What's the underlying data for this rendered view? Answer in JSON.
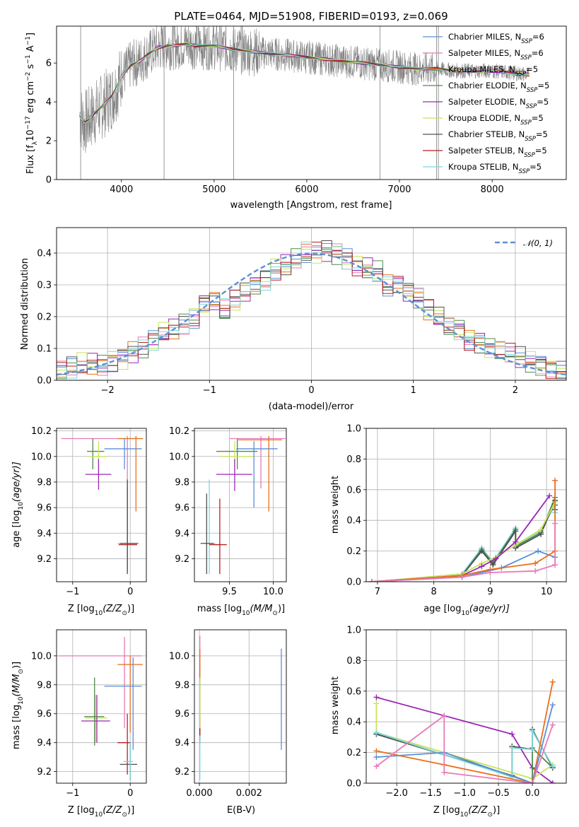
{
  "colors": {
    "chabrier_miles": "#5b8fd8",
    "salpeter_miles": "#e879b7",
    "kroupa_miles": "#ea6f1c",
    "chabrier_elodie": "#4f8a4c",
    "salpeter_elodie": "#9b27b5",
    "kroupa_elodie": "#c8e35a",
    "chabrier_stelib": "#505050",
    "salpeter_stelib": "#b52020",
    "kroupa_stelib": "#7dd8dc",
    "data": "#808080",
    "gauss": "#5b8fd8",
    "grid": "#b0b0b0"
  },
  "chart_data": [
    {
      "id": "spectrum",
      "type": "line",
      "title": "PLATE=0464, MJD=51908, FIBERID=0193, z=0.069",
      "xlabel": "wavelength [Angstrom, rest frame]",
      "ylabel_main": "Flux [f",
      "ylabel_lambda": "λ",
      "ylabel_mid": "10",
      "ylabel_exp1": "−17",
      "ylabel_mid2": " erg cm",
      "ylabel_exp2": "−2",
      "ylabel_mid3": " s",
      "ylabel_exp3": "−1",
      "ylabel_mid4": " A",
      "ylabel_exp4": "−1",
      "ylabel_end": "]",
      "xlim": [
        3300,
        8800
      ],
      "ylim": [
        0,
        7.9
      ],
      "xticks": [
        4000,
        5000,
        6000,
        7000,
        8000
      ],
      "yticks": [
        0,
        2,
        4,
        6
      ],
      "grid": false,
      "legend": "top-right",
      "series": [
        {
          "name": "Chabrier MILES, N",
          "sub": "SSP",
          "tail": "=6",
          "color": "#5b8fd8"
        },
        {
          "name": "Salpeter MILES, N",
          "sub": "SSP",
          "tail": "=6",
          "color": "#e879b7"
        },
        {
          "name": "Kroupa MILES, N",
          "sub": "SSP",
          "tail": "=5",
          "color": "#ea6f1c"
        },
        {
          "name": "Chabrier ELODIE, N",
          "sub": "SSP",
          "tail": "=5",
          "color": "#4f8a4c"
        },
        {
          "name": "Salpeter ELODIE, N",
          "sub": "SSP",
          "tail": "=5",
          "color": "#9b27b5"
        },
        {
          "name": "Kroupa ELODIE, N",
          "sub": "SSP",
          "tail": "=5",
          "color": "#c8e35a"
        },
        {
          "name": "Chabrier STELIB, N",
          "sub": "SSP",
          "tail": "=5",
          "color": "#505050"
        },
        {
          "name": "Salpeter STELIB, N",
          "sub": "SSP",
          "tail": "=5",
          "color": "#b52020"
        },
        {
          "name": "Kroupa STELIB, N",
          "sub": "SSP",
          "tail": "=5",
          "color": "#7dd8dc"
        }
      ],
      "model_x": [
        3550,
        3600,
        3650,
        3700,
        3800,
        3900,
        4000,
        4100,
        4200,
        4300,
        4400,
        4500,
        4600,
        4700,
        4800,
        5000,
        5200,
        5400,
        5600,
        5800,
        6000,
        6200,
        6400,
        6600,
        6800,
        7000,
        7200,
        7400,
        7600,
        7800,
        8000,
        8200,
        8400
      ],
      "model_y": [
        3.3,
        2.9,
        3.1,
        3.4,
        3.8,
        4.3,
        5.3,
        5.9,
        6.1,
        6.5,
        6.8,
        6.9,
        6.9,
        7.0,
        6.9,
        6.9,
        6.7,
        6.6,
        6.5,
        6.4,
        6.3,
        6.2,
        6.1,
        6.0,
        5.9,
        5.8,
        5.7,
        5.7,
        5.6,
        5.6,
        5.6,
        5.5,
        5.4
      ]
    },
    {
      "id": "residuals",
      "type": "histogram",
      "xlabel": "(data-model)/error",
      "ylabel": "Normed distribution",
      "xlim": [
        -2.5,
        2.5
      ],
      "ylim": [
        0,
        0.48
      ],
      "xticks": [
        -2,
        -1,
        0,
        1,
        2
      ],
      "yticks": [
        0.0,
        0.1,
        0.2,
        0.3,
        0.4
      ],
      "grid": true,
      "legend": "top-right",
      "gauss_label": "𝒩(0, 1)",
      "bin_edges": [
        -2.5,
        -2.4,
        -2.3,
        -2.2,
        -2.1,
        -2.0,
        -1.9,
        -1.8,
        -1.7,
        -1.6,
        -1.5,
        -1.4,
        -1.3,
        -1.2,
        -1.1,
        -1.0,
        -0.9,
        -0.8,
        -0.7,
        -0.6,
        -0.5,
        -0.4,
        -0.3,
        -0.2,
        -0.1,
        0.0,
        0.1,
        0.2,
        0.3,
        0.4,
        0.5,
        0.6,
        0.7,
        0.8,
        0.9,
        1.0,
        1.1,
        1.2,
        1.3,
        1.4,
        1.5,
        1.6,
        1.7,
        1.8,
        1.9,
        2.0,
        2.1,
        2.2,
        2.3,
        2.4,
        2.5
      ],
      "hist_base": [
        0.03,
        0.04,
        0.05,
        0.05,
        0.05,
        0.06,
        0.07,
        0.09,
        0.1,
        0.12,
        0.15,
        0.16,
        0.18,
        0.2,
        0.24,
        0.25,
        0.22,
        0.25,
        0.28,
        0.3,
        0.32,
        0.35,
        0.36,
        0.38,
        0.4,
        0.4,
        0.41,
        0.4,
        0.38,
        0.36,
        0.35,
        0.34,
        0.3,
        0.3,
        0.28,
        0.26,
        0.22,
        0.2,
        0.17,
        0.16,
        0.13,
        0.12,
        0.1,
        0.09,
        0.08,
        0.07,
        0.06,
        0.05,
        0.04,
        0.03
      ]
    },
    {
      "id": "z_vs_age",
      "type": "errorbar",
      "xlabel": "Z [log",
      "xlabel_sub": "10",
      "xlabel_end": "(Z/Z",
      "xlabel_sun": "⊙",
      "xlabel_close": ")]",
      "ylabel": "age  [log",
      "ylabel_sub": "10",
      "ylabel_end": "(age/yr)]",
      "xlim": [
        -1.28,
        0.28
      ],
      "ylim": [
        9.02,
        10.22
      ],
      "xticks": [
        -1,
        0
      ],
      "yticks": [
        9.2,
        9.4,
        9.6,
        9.8,
        10.0,
        10.2
      ],
      "grid": true,
      "points": [
        {
          "x": -0.05,
          "y": 10.14,
          "xlo": -1.2,
          "xhi": 0.22,
          "ylo": 9.63,
          "yhi": 10.16,
          "c": "#e879b7"
        },
        {
          "x": 0.1,
          "y": 10.14,
          "xlo": -0.22,
          "xhi": 0.22,
          "ylo": 9.57,
          "yhi": 10.16,
          "c": "#ea6f1c"
        },
        {
          "x": -0.1,
          "y": 10.06,
          "xlo": -0.45,
          "xhi": 0.2,
          "ylo": 9.9,
          "yhi": 10.14,
          "c": "#5b8fd8"
        },
        {
          "x": -0.65,
          "y": 10.04,
          "xlo": -0.75,
          "xhi": -0.45,
          "ylo": 9.9,
          "yhi": 10.14,
          "c": "#4f8a4c"
        },
        {
          "x": -0.55,
          "y": 10.0,
          "xlo": -0.72,
          "xhi": -0.4,
          "ylo": 9.87,
          "yhi": 10.12,
          "c": "#c8e35a"
        },
        {
          "x": -0.55,
          "y": 9.86,
          "xlo": -0.78,
          "xhi": -0.33,
          "ylo": 9.74,
          "yhi": 9.98,
          "c": "#9b27b5"
        },
        {
          "x": -0.05,
          "y": 9.32,
          "xlo": -0.22,
          "xhi": 0.12,
          "ylo": 9.1,
          "yhi": 9.8,
          "c": "#7dd8dc"
        },
        {
          "x": -0.05,
          "y": 9.31,
          "xlo": -0.2,
          "xhi": 0.12,
          "ylo": 9.08,
          "yhi": 9.76,
          "c": "#b52020"
        },
        {
          "x": -0.05,
          "y": 9.32,
          "xlo": -0.18,
          "xhi": 0.14,
          "ylo": 9.1,
          "yhi": 9.82,
          "c": "#505050"
        }
      ]
    },
    {
      "id": "mass_vs_age",
      "type": "errorbar",
      "xlabel": "mass [log",
      "xlabel_sub": "10",
      "xlabel_end": "(M/M",
      "xlabel_sun": "⊙",
      "xlabel_close": ")]",
      "xlim": [
        9.1,
        10.15
      ],
      "ylim": [
        9.02,
        10.22
      ],
      "xticks": [
        9.5,
        10.0
      ],
      "yticks": [
        9.2,
        9.4,
        9.6,
        9.8,
        10.0,
        10.2
      ],
      "grid": true,
      "points": [
        {
          "x": 9.86,
          "y": 10.14,
          "xlo": 9.5,
          "xhi": 10.14,
          "ylo": 9.75,
          "yhi": 10.16,
          "c": "#e879b7"
        },
        {
          "x": 9.95,
          "y": 10.13,
          "xlo": 9.6,
          "xhi": 10.1,
          "ylo": 9.57,
          "yhi": 10.16,
          "c": "#ea6f1c"
        },
        {
          "x": 9.78,
          "y": 10.06,
          "xlo": 9.58,
          "xhi": 10.05,
          "ylo": 9.6,
          "yhi": 10.12,
          "c": "#5b8fd8"
        },
        {
          "x": 9.59,
          "y": 10.04,
          "xlo": 9.35,
          "xhi": 9.82,
          "ylo": 9.9,
          "yhi": 10.14,
          "c": "#4f8a4c"
        },
        {
          "x": 9.56,
          "y": 10.0,
          "xlo": 9.38,
          "xhi": 9.77,
          "ylo": 9.88,
          "yhi": 10.12,
          "c": "#c8e35a"
        },
        {
          "x": 9.56,
          "y": 9.86,
          "xlo": 9.35,
          "xhi": 9.76,
          "ylo": 9.73,
          "yhi": 9.98,
          "c": "#9b27b5"
        },
        {
          "x": 9.27,
          "y": 9.32,
          "xlo": 9.2,
          "xhi": 9.34,
          "ylo": 9.08,
          "yhi": 9.82,
          "c": "#7dd8dc"
        },
        {
          "x": 9.39,
          "y": 9.31,
          "xlo": 9.27,
          "xhi": 9.47,
          "ylo": 9.08,
          "yhi": 9.67,
          "c": "#b52020"
        },
        {
          "x": 9.24,
          "y": 9.32,
          "xlo": 9.17,
          "xhi": 9.32,
          "ylo": 9.08,
          "yhi": 9.71,
          "c": "#505050"
        }
      ]
    },
    {
      "id": "age_weight",
      "type": "line",
      "xlabel": "age  [log",
      "xlabel_sub": "10",
      "xlabel_end": "(age/yr)]",
      "ylabel": "mass weight",
      "xlim": [
        6.8,
        10.35
      ],
      "ylim": [
        0,
        1.0
      ],
      "xticks": [
        7,
        8,
        9,
        10
      ],
      "yticks": [
        0.0,
        0.2,
        0.4,
        0.6,
        0.8,
        1.0
      ],
      "grid": true,
      "series": [
        {
          "c": "#7dd8dc",
          "x": [
            6.9,
            8.5,
            8.85,
            9.05,
            9.45,
            9.45,
            9.9,
            10.15,
            10.15
          ],
          "y": [
            0.0,
            0.05,
            0.22,
            0.13,
            0.35,
            0.24,
            0.33,
            0.5,
            0.45
          ]
        },
        {
          "c": "#4f8a4c",
          "x": [
            6.9,
            8.5,
            8.85,
            9.05,
            9.45,
            9.45,
            9.9,
            10.15,
            10.15
          ],
          "y": [
            0.0,
            0.04,
            0.21,
            0.12,
            0.34,
            0.23,
            0.32,
            0.55,
            0.5
          ]
        },
        {
          "c": "#505050",
          "x": [
            6.9,
            8.5,
            8.85,
            9.05,
            9.45,
            9.45,
            9.9,
            10.15,
            10.15
          ],
          "y": [
            0.0,
            0.04,
            0.2,
            0.11,
            0.33,
            0.22,
            0.31,
            0.53,
            0.47
          ]
        },
        {
          "c": "#c8e35a",
          "x": [
            6.9,
            8.5,
            8.85,
            9.1,
            9.45,
            9.9,
            10.15
          ],
          "y": [
            0.0,
            0.05,
            0.12,
            0.16,
            0.24,
            0.34,
            0.52
          ]
        },
        {
          "c": "#9b27b5",
          "x": [
            6.9,
            8.5,
            8.85,
            9.1,
            9.45,
            10.05
          ],
          "y": [
            0.0,
            0.04,
            0.1,
            0.15,
            0.26,
            0.56
          ]
        },
        {
          "c": "#5b8fd8",
          "x": [
            6.9,
            8.5,
            9.2,
            9.85,
            10.15
          ],
          "y": [
            0.0,
            0.03,
            0.09,
            0.2,
            0.16
          ]
        },
        {
          "c": "#ea6f1c",
          "x": [
            6.9,
            8.5,
            9.0,
            9.8,
            10.15,
            10.15
          ],
          "y": [
            0.0,
            0.04,
            0.08,
            0.12,
            0.2,
            0.66
          ]
        },
        {
          "c": "#e879b7",
          "x": [
            6.9,
            8.5,
            9.0,
            9.8,
            10.15,
            10.15
          ],
          "y": [
            0.0,
            0.03,
            0.06,
            0.07,
            0.11,
            0.38
          ]
        }
      ]
    },
    {
      "id": "z_vs_mass",
      "type": "errorbar",
      "xlabel": "Z [log",
      "xlabel_sub": "10",
      "xlabel_end": "(Z/Z",
      "xlabel_sun": "⊙",
      "xlabel_close": ")]",
      "ylabel": "mass [log",
      "ylabel_sub": "10",
      "ylabel_end": "(M/M",
      "ylabel_sun": "⊙",
      "ylabel_close": ")]",
      "xlim": [
        -1.28,
        0.28
      ],
      "ylim": [
        9.12,
        10.18
      ],
      "xticks": [
        -1,
        0
      ],
      "yticks": [
        9.2,
        9.4,
        9.6,
        9.8,
        10.0
      ],
      "grid": true,
      "points": [
        {
          "x": -0.1,
          "y": 10.0,
          "xlo": -1.25,
          "xhi": 0.2,
          "ylo": 9.5,
          "yhi": 10.13,
          "c": "#e879b7"
        },
        {
          "x": 0.0,
          "y": 9.94,
          "xlo": -0.22,
          "xhi": 0.22,
          "ylo": 9.47,
          "yhi": 10.0,
          "c": "#ea6f1c"
        },
        {
          "x": 0.05,
          "y": 9.79,
          "xlo": -0.45,
          "xhi": 0.2,
          "ylo": 9.35,
          "yhi": 9.99,
          "c": "#5b8fd8"
        },
        {
          "x": -0.6,
          "y": 9.57,
          "xlo": -0.78,
          "xhi": -0.4,
          "ylo": 9.4,
          "yhi": 9.73,
          "c": "#c8e35a"
        },
        {
          "x": -0.58,
          "y": 9.55,
          "xlo": -0.85,
          "xhi": -0.35,
          "ylo": 9.4,
          "yhi": 9.73,
          "c": "#9b27b5"
        },
        {
          "x": -0.62,
          "y": 9.58,
          "xlo": -0.8,
          "xhi": -0.45,
          "ylo": 9.38,
          "yhi": 9.85,
          "c": "#4f8a4c"
        },
        {
          "x": -0.05,
          "y": 9.4,
          "xlo": -0.22,
          "xhi": 0.0,
          "ylo": 9.18,
          "yhi": 9.6,
          "c": "#b52020"
        },
        {
          "x": 0.0,
          "y": 9.25,
          "xlo": -0.18,
          "xhi": 0.12,
          "ylo": 9.14,
          "yhi": 9.4,
          "c": "#505050"
        },
        {
          "x": 0.0,
          "y": 9.27,
          "xlo": -0.12,
          "xhi": 0.05,
          "ylo": 9.14,
          "yhi": 9.4,
          "c": "#7dd8dc"
        }
      ]
    },
    {
      "id": "ebv_vs_mass",
      "type": "errorbar",
      "xlabel": "E(B-V)",
      "xlim": [
        -0.0002,
        0.0035
      ],
      "ylim": [
        9.12,
        10.18
      ],
      "xticks": [
        0.0,
        0.002
      ],
      "xtick_labels": [
        "0.000",
        "0.002"
      ],
      "yticks": [
        9.2,
        9.4,
        9.6,
        9.8,
        10.0
      ],
      "grid": true,
      "points": [
        {
          "x": 2e-05,
          "y": 9.8,
          "ylo": 9.4,
          "yhi": 10.14,
          "c": "#e879b7"
        },
        {
          "x": 2e-05,
          "y": 9.9,
          "ylo": 9.55,
          "yhi": 10.05,
          "c": "#ea6f1c"
        },
        {
          "x": 2e-05,
          "y": 9.6,
          "ylo": 9.4,
          "yhi": 9.85,
          "c": "#4f8a4c"
        },
        {
          "x": 2e-05,
          "y": 9.5,
          "ylo": 9.4,
          "yhi": 9.6,
          "c": "#b52020"
        },
        {
          "x": 2e-05,
          "y": 9.3,
          "ylo": 9.14,
          "yhi": 9.45,
          "c": "#7dd8dc"
        },
        {
          "x": 2e-05,
          "y": 9.7,
          "ylo": 9.5,
          "yhi": 9.85,
          "c": "#c8e35a"
        },
        {
          "x": 0.0033,
          "y": 9.7,
          "ylo": 9.35,
          "yhi": 10.05,
          "c": "#5b8fd8"
        }
      ]
    },
    {
      "id": "z_weight",
      "type": "line",
      "xlabel": "Z [log",
      "xlabel_sub": "10",
      "xlabel_end": "(Z/Z",
      "xlabel_sun": "⊙",
      "xlabel_close": ")]",
      "ylabel": "mass weight",
      "xlim": [
        -2.45,
        0.5
      ],
      "ylim": [
        0,
        1.0
      ],
      "xticks": [
        -2.0,
        -1.5,
        -1.0,
        -0.5,
        0.0
      ],
      "xtick_labels": [
        "−2.0",
        "−1.5",
        "−1.0",
        "−0.5",
        "0.0"
      ],
      "yticks": [
        0.0,
        0.2,
        0.4,
        0.6,
        0.8,
        1.0
      ],
      "grid": true,
      "series": [
        {
          "c": "#9b27b5",
          "x": [
            -2.3,
            -0.3,
            0.0,
            0.3
          ],
          "y": [
            0.56,
            0.32,
            0.1,
            0.0
          ]
        },
        {
          "c": "#c8e35a",
          "x": [
            -2.3,
            -2.3,
            0.0,
            0.3
          ],
          "y": [
            0.52,
            0.33,
            0.03,
            0.12
          ]
        },
        {
          "c": "#4f8a4c",
          "x": [
            -2.3,
            -0.3,
            0.0,
            0.0,
            0.3
          ],
          "y": [
            0.32,
            0.05,
            0.0,
            0.23,
            0.1
          ]
        },
        {
          "c": "#505050",
          "x": [
            -2.3,
            -0.3,
            -0.3,
            0.0,
            0.0,
            0.3
          ],
          "y": [
            0.32,
            0.05,
            0.24,
            0.22,
            0.35,
            0.1
          ]
        },
        {
          "c": "#7dd8dc",
          "x": [
            -2.3,
            -0.3,
            -0.3,
            0.0,
            0.0,
            0.3
          ],
          "y": [
            0.33,
            0.04,
            0.23,
            0.22,
            0.34,
            0.11
          ]
        },
        {
          "c": "#ea6f1c",
          "x": [
            -2.3,
            -1.3,
            0.0,
            0.3
          ],
          "y": [
            0.21,
            0.12,
            0.0,
            0.66
          ]
        },
        {
          "c": "#5b8fd8",
          "x": [
            -2.3,
            -1.3,
            0.0,
            0.3
          ],
          "y": [
            0.17,
            0.2,
            0.0,
            0.51
          ]
        },
        {
          "c": "#e879b7",
          "x": [
            -2.3,
            -1.3,
            -1.3,
            0.0,
            0.3
          ],
          "y": [
            0.11,
            0.44,
            0.07,
            0.0,
            0.38
          ]
        }
      ]
    }
  ]
}
